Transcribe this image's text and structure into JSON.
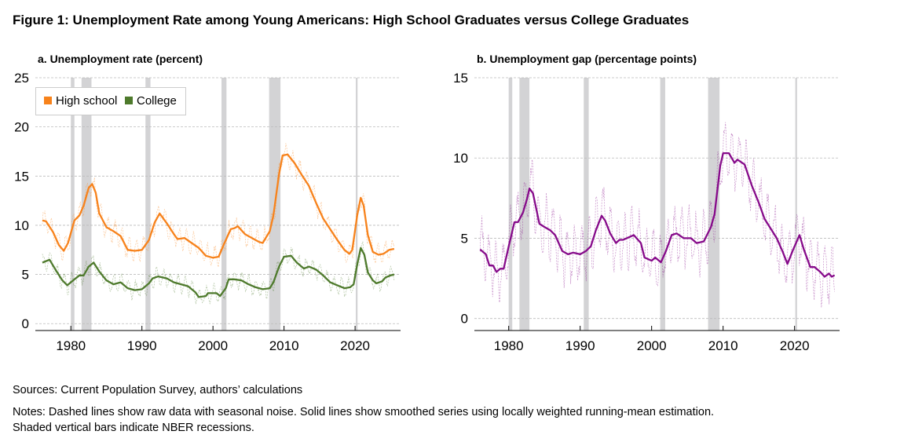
{
  "title": "Figure 1: Unemployment Rate among Young Americans: High School Graduates versus College Graduates",
  "sources": "Sources: Current Population Survey, authors’ calculations",
  "notes": [
    "Notes: Dashed lines show raw data with seasonal noise. Solid lines show smoothed series using locally weighted running-mean estimation.",
    "Shaded vertical bars indicate NBER recessions."
  ],
  "colors": {
    "high_school": "#f7821b",
    "college": "#4e7a2c",
    "gap": "#860a8a",
    "recession": "#d3d3d5"
  },
  "recessions": [
    [
      1980.0,
      1980.5
    ],
    [
      1981.5,
      1982.9
    ],
    [
      1990.5,
      1991.2
    ],
    [
      2001.2,
      2001.9
    ],
    [
      2007.9,
      2009.5
    ],
    [
      2020.1,
      2020.35
    ]
  ],
  "chart_data": [
    {
      "type": "line",
      "title": "a. Unemployment rate (percent)",
      "xlim": [
        1975,
        2026.4
      ],
      "ylim": [
        -0.7,
        25
      ],
      "xticks": [
        "1980",
        "1990",
        "2000",
        "2010",
        "2020"
      ],
      "yticks": [
        "0",
        "5",
        "10",
        "15",
        "20",
        "25"
      ],
      "grid": true,
      "legend_placement": "top-left",
      "series": [
        {
          "name": "High school",
          "color_key": "high_school",
          "x": [
            1976,
            1976.5,
            1977.5,
            1978.3,
            1979,
            1979.6,
            1980.5,
            1981.2,
            1981.8,
            1982.5,
            1983,
            1983.5,
            1984,
            1985,
            1986,
            1987,
            1988,
            1989,
            1990,
            1991,
            1991.8,
            1992.5,
            1993.5,
            1994.5,
            1995,
            1996,
            1997,
            1998,
            1999,
            2000,
            2000.8,
            2001.5,
            2002.5,
            2003,
            2003.5,
            2004.5,
            2005.5,
            2006.5,
            2007,
            2008,
            2008.5,
            2009.3,
            2009.8,
            2010.5,
            2011.5,
            2012.5,
            2013.5,
            2014.5,
            2015.5,
            2016.5,
            2017.5,
            2018.5,
            2019.2,
            2019.6,
            2020.3,
            2020.8,
            2021.2,
            2021.8,
            2022.5,
            2023.3,
            2024,
            2024.8,
            2025.5
          ],
          "y": [
            10.5,
            10.4,
            9.3,
            8.0,
            7.4,
            8.2,
            10.5,
            11.0,
            12.0,
            13.8,
            14.2,
            13.3,
            11.2,
            9.8,
            9.4,
            8.9,
            7.5,
            7.4,
            7.5,
            8.5,
            10.3,
            11.2,
            10.2,
            9.1,
            8.6,
            8.7,
            8.2,
            7.7,
            6.9,
            6.7,
            6.8,
            8.0,
            9.6,
            9.7,
            9.9,
            9.1,
            8.7,
            8.3,
            8.2,
            9.4,
            11.0,
            15.2,
            17.1,
            17.2,
            16.3,
            15.1,
            14.0,
            12.3,
            10.7,
            9.6,
            8.5,
            7.5,
            7.1,
            7.5,
            11.0,
            12.8,
            12.0,
            9.0,
            7.3,
            7.0,
            7.1,
            7.5,
            7.6
          ]
        },
        {
          "name": "College",
          "color_key": "college",
          "x": [
            1976,
            1977,
            1978,
            1978.8,
            1979.5,
            1980.5,
            1981.2,
            1981.8,
            1982.5,
            1983.2,
            1984,
            1985,
            1986,
            1987,
            1988,
            1989,
            1990,
            1991,
            1991.5,
            1992.3,
            1993.5,
            1994.5,
            1995.5,
            1996.5,
            1997.5,
            1998,
            1999,
            1999.3,
            2000.5,
            2001,
            2001.8,
            2002.2,
            2003,
            2004,
            2005,
            2006,
            2007,
            2008,
            2008.5,
            2009.3,
            2010,
            2011,
            2011.8,
            2012.8,
            2013.5,
            2014.5,
            2015.5,
            2016.5,
            2017.5,
            2018.5,
            2019.3,
            2019.8,
            2020.3,
            2020.8,
            2021.3,
            2021.8,
            2022.5,
            2023,
            2023.8,
            2024.3,
            2025,
            2025.5
          ],
          "y": [
            6.2,
            6.5,
            5.3,
            4.4,
            3.9,
            4.5,
            4.9,
            4.9,
            5.8,
            6.2,
            5.3,
            4.4,
            4.0,
            4.2,
            3.6,
            3.4,
            3.5,
            4.1,
            4.6,
            4.8,
            4.6,
            4.2,
            4.0,
            3.8,
            3.2,
            2.7,
            2.8,
            3.1,
            3.1,
            2.8,
            3.6,
            4.5,
            4.5,
            4.4,
            4.0,
            3.7,
            3.5,
            3.6,
            4.2,
            5.8,
            6.8,
            6.9,
            6.2,
            5.6,
            5.8,
            5.5,
            4.9,
            4.2,
            3.9,
            3.6,
            3.7,
            4.0,
            6.0,
            7.7,
            7.0,
            5.2,
            4.4,
            4.1,
            4.3,
            4.7,
            4.9,
            5.0
          ]
        }
      ]
    },
    {
      "type": "line",
      "title": "b. Unemployment gap (percentage points)",
      "xlim": [
        1975.2,
        2026.3
      ],
      "ylim": [
        -0.75,
        15
      ],
      "xticks": [
        "1980",
        "1990",
        "2000",
        "2010",
        "2020"
      ],
      "yticks": [
        "0",
        "5",
        "10",
        "15"
      ],
      "grid": true,
      "series": [
        {
          "color_key": "gap",
          "x": [
            1976,
            1976.8,
            1977.3,
            1977.8,
            1978.3,
            1978.8,
            1979.3,
            1980,
            1980.8,
            1981.3,
            1982,
            1982.6,
            1982.9,
            1983.4,
            1984.3,
            1985,
            1985.8,
            1986.5,
            1987.5,
            1988.3,
            1989,
            1990,
            1990.8,
            1991.5,
            1992.2,
            1993,
            1993.5,
            1994.2,
            1995,
            1995.5,
            1996,
            1997.5,
            1998.5,
            1999,
            2000,
            2000.5,
            2001.3,
            2002,
            2002.8,
            2003.5,
            2004.5,
            2005.5,
            2006.3,
            2007.3,
            2008.3,
            2008.8,
            2009.6,
            2010,
            2010.8,
            2011.6,
            2012,
            2013,
            2014,
            2015,
            2015.8,
            2016.8,
            2017.5,
            2018.3,
            2019,
            2019.8,
            2020.7,
            2021.3,
            2022.2,
            2022.8,
            2023.6,
            2024.2,
            2024.8,
            2025.2,
            2025.6
          ],
          "y": [
            4.3,
            4.0,
            3.3,
            3.3,
            2.9,
            3.1,
            3.1,
            4.5,
            6.0,
            6.0,
            6.6,
            7.5,
            8.1,
            7.8,
            5.9,
            5.7,
            5.5,
            5.2,
            4.2,
            4.0,
            4.1,
            4.0,
            4.2,
            4.5,
            5.5,
            6.4,
            6.1,
            5.3,
            4.7,
            4.9,
            4.9,
            5.2,
            4.7,
            3.8,
            3.6,
            3.8,
            3.5,
            4.2,
            5.2,
            5.3,
            5.0,
            5.0,
            4.7,
            4.8,
            5.7,
            6.5,
            9.5,
            10.3,
            10.3,
            9.7,
            9.9,
            9.6,
            8.3,
            7.2,
            6.2,
            5.5,
            5.0,
            4.2,
            3.4,
            4.3,
            5.2,
            4.3,
            3.2,
            3.2,
            2.9,
            2.6,
            2.8,
            2.6,
            2.7
          ]
        }
      ]
    }
  ]
}
